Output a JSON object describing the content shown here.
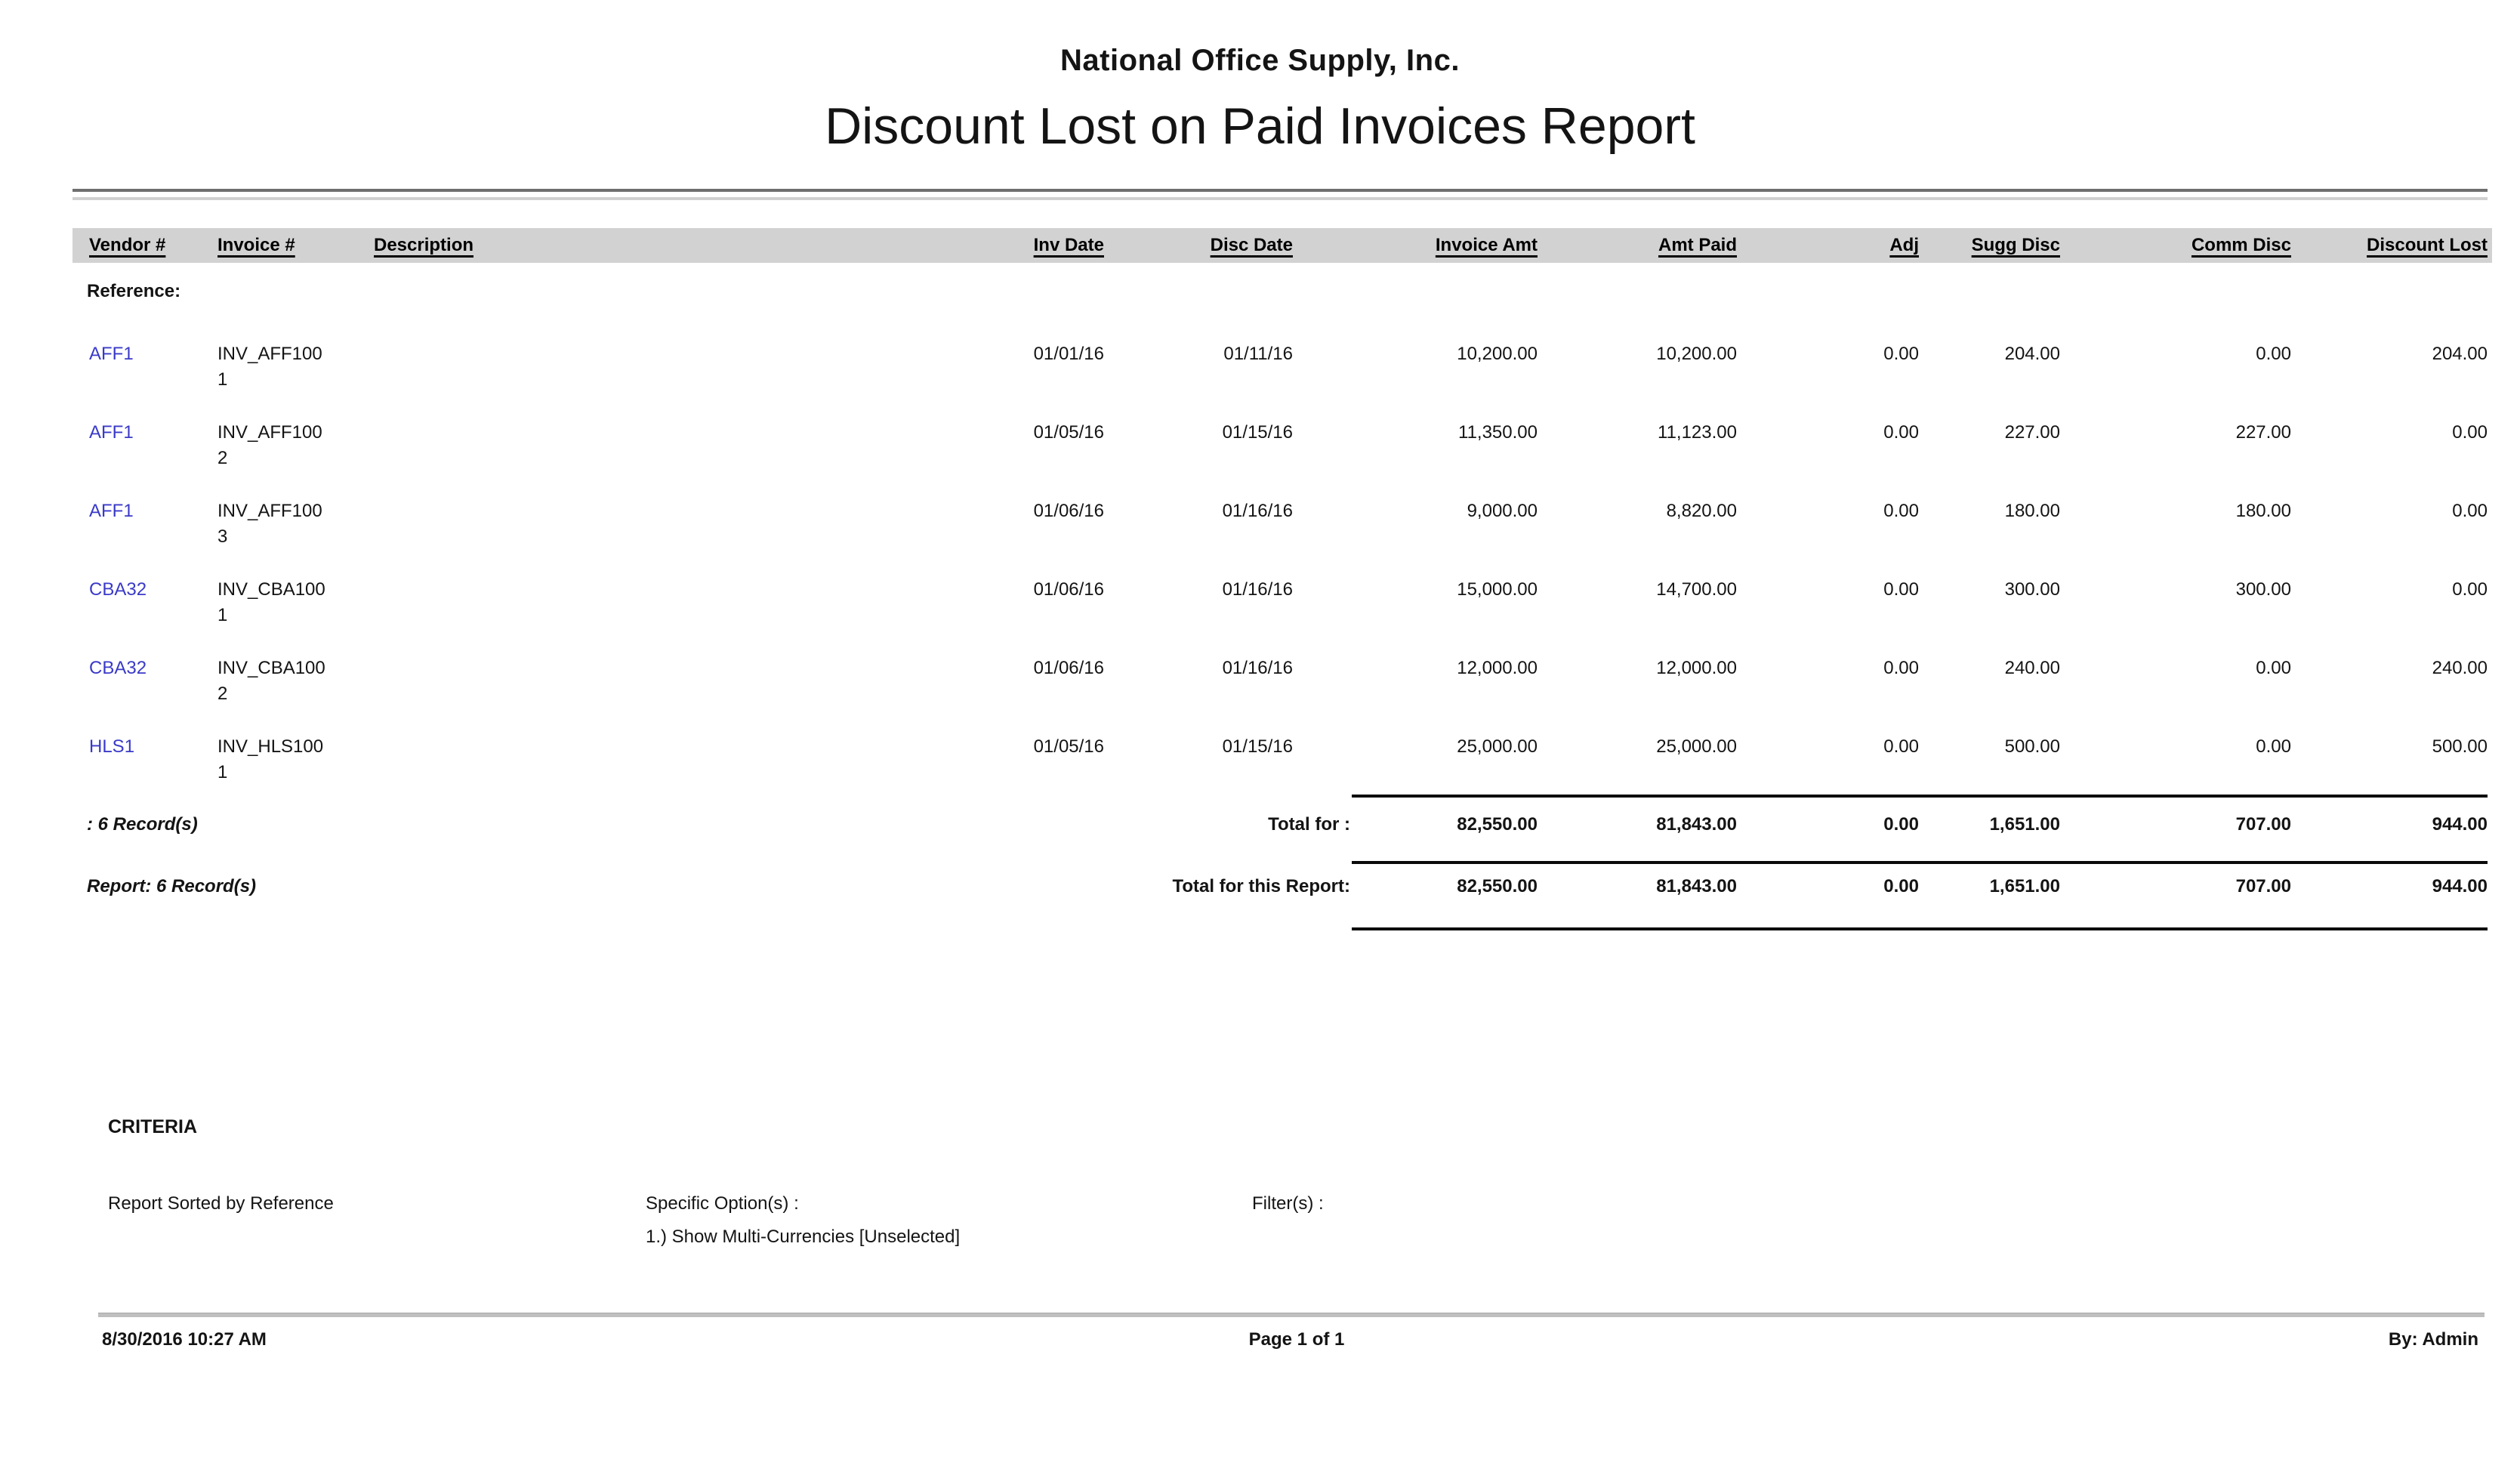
{
  "report": {
    "company_name": "National Office Supply, Inc.",
    "report_title": "Discount Lost on Paid Invoices Report",
    "table": {
      "columns": [
        "Vendor #",
        "Invoice #",
        "Description",
        "Inv Date",
        "Disc Date",
        "Invoice Amt",
        "Amt Paid",
        "Adj",
        "Sugg Disc",
        "Comm Disc",
        "Discount Lost"
      ],
      "group_label": "Reference:",
      "rows": [
        {
          "vendor": "AFF1",
          "invoice": "INV_AFF100\n1",
          "description": "",
          "inv_date": "01/01/16",
          "disc_date": "01/11/16",
          "invoice_amt": "10,200.00",
          "amt_paid": "10,200.00",
          "adj": "0.00",
          "sugg_disc": "204.00",
          "comm_disc": "0.00",
          "discount_lost": "204.00"
        },
        {
          "vendor": "AFF1",
          "invoice": "INV_AFF100\n2",
          "description": "",
          "inv_date": "01/05/16",
          "disc_date": "01/15/16",
          "invoice_amt": "11,350.00",
          "amt_paid": "11,123.00",
          "adj": "0.00",
          "sugg_disc": "227.00",
          "comm_disc": "227.00",
          "discount_lost": "0.00"
        },
        {
          "vendor": "AFF1",
          "invoice": "INV_AFF100\n3",
          "description": "",
          "inv_date": "01/06/16",
          "disc_date": "01/16/16",
          "invoice_amt": "9,000.00",
          "amt_paid": "8,820.00",
          "adj": "0.00",
          "sugg_disc": "180.00",
          "comm_disc": "180.00",
          "discount_lost": "0.00"
        },
        {
          "vendor": "CBA32",
          "invoice": "INV_CBA100\n1",
          "description": "",
          "inv_date": "01/06/16",
          "disc_date": "01/16/16",
          "invoice_amt": "15,000.00",
          "amt_paid": "14,700.00",
          "adj": "0.00",
          "sugg_disc": "300.00",
          "comm_disc": "300.00",
          "discount_lost": "0.00"
        },
        {
          "vendor": "CBA32",
          "invoice": "INV_CBA100\n2",
          "description": "",
          "inv_date": "01/06/16",
          "disc_date": "01/16/16",
          "invoice_amt": "12,000.00",
          "amt_paid": "12,000.00",
          "adj": "0.00",
          "sugg_disc": "240.00",
          "comm_disc": "0.00",
          "discount_lost": "240.00"
        },
        {
          "vendor": "HLS1",
          "invoice": "INV_HLS100\n1",
          "description": "",
          "inv_date": "01/05/16",
          "disc_date": "01/15/16",
          "invoice_amt": "25,000.00",
          "amt_paid": "25,000.00",
          "adj": "0.00",
          "sugg_disc": "500.00",
          "comm_disc": "0.00",
          "discount_lost": "500.00"
        }
      ]
    },
    "group_total": {
      "records": ": 6 Record(s)",
      "label": "Total for :",
      "invoice_amt": "82,550.00",
      "amt_paid": "81,843.00",
      "adj": "0.00",
      "sugg_disc": "1,651.00",
      "comm_disc": "707.00",
      "discount_lost": "944.00"
    },
    "report_total": {
      "records": "Report: 6 Record(s)",
      "label": "Total for this Report:",
      "invoice_amt": "82,550.00",
      "amt_paid": "81,843.00",
      "adj": "0.00",
      "sugg_disc": "1,651.00",
      "comm_disc": "707.00",
      "discount_lost": "944.00"
    },
    "criteria": {
      "heading": "CRITERIA",
      "sort": "Report Sorted by Reference",
      "options_label": "Specific Option(s) :",
      "options": [
        "1.) Show Multi-Currencies [Unselected]"
      ],
      "filters_label": "Filter(s) :"
    },
    "footer": {
      "datetime": "8/30/2016 10:27 AM",
      "page": "Page 1 of 1",
      "by": "By: Admin"
    }
  },
  "colors": {
    "vendor_link": "#3a3ac8",
    "header_band": "#d2d2d2",
    "total_line": "#0a0a0a",
    "footer_rule": "#bfbfbf"
  }
}
